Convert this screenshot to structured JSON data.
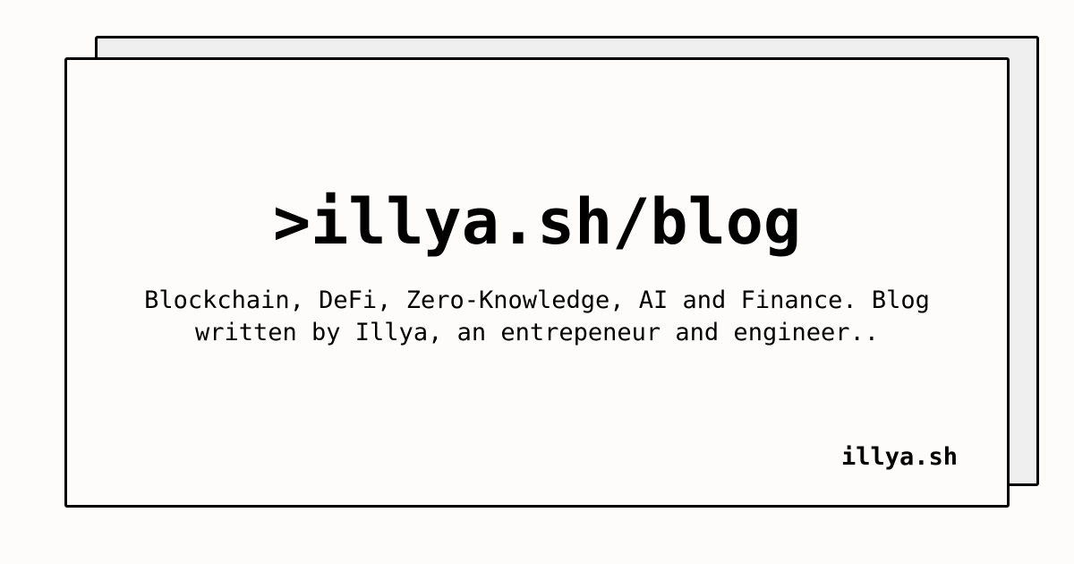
{
  "card": {
    "title": ">illya.sh/blog",
    "description": "Blockchain, DeFi, Zero-Knowledge, AI and Finance. Blog written by Illya, an entrepeneur and engineer..",
    "site_label": "illya.sh"
  },
  "colors": {
    "background": "#fdfcfa",
    "back_card": "#efefef",
    "border": "#000000",
    "text": "#000000"
  }
}
